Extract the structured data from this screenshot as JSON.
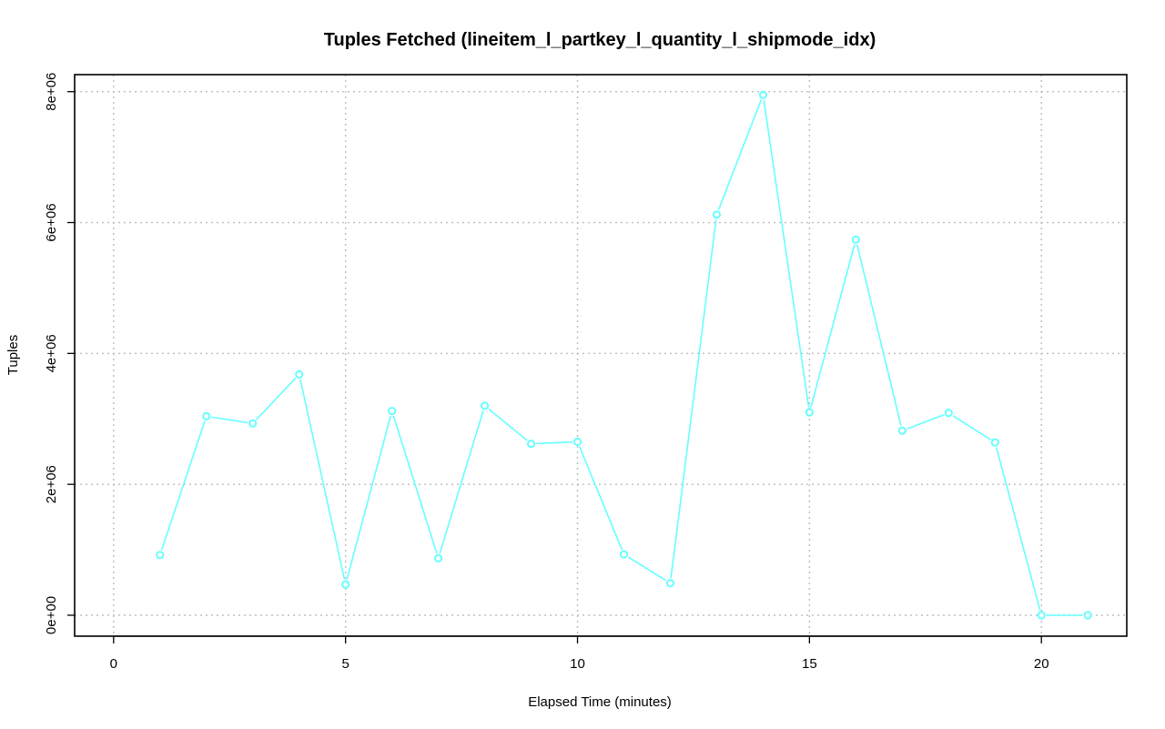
{
  "chart_data": {
    "type": "line",
    "title": "Tuples Fetched (lineitem_l_partkey_l_quantity_l_shipmode_idx)",
    "xlabel": "Elapsed Time (minutes)",
    "ylabel": "Tuples",
    "xlim": [
      -0.84,
      21.84
    ],
    "ylim": [
      -320000,
      8260000
    ],
    "x_ticks": [
      0,
      5,
      10,
      15,
      20
    ],
    "x_tick_labels": [
      "0",
      "5",
      "10",
      "15",
      "20"
    ],
    "y_ticks": [
      0,
      2000000,
      4000000,
      6000000,
      8000000
    ],
    "y_tick_labels": [
      "0e+00",
      "2e+06",
      "4e+06",
      "6e+06",
      "8e+06"
    ],
    "grid": true,
    "series": [
      {
        "color": "#66ffff",
        "x": [
          1,
          2,
          3,
          4,
          5,
          6,
          7,
          8,
          9,
          10,
          11,
          12,
          13,
          14,
          15,
          16,
          17,
          18,
          19,
          20,
          21
        ],
        "values": [
          920000,
          3040000,
          2930000,
          3680000,
          470000,
          3120000,
          870000,
          3200000,
          2620000,
          2650000,
          930000,
          490000,
          6120000,
          7950000,
          3100000,
          5740000,
          2820000,
          3090000,
          2640000,
          0,
          0
        ]
      }
    ]
  }
}
